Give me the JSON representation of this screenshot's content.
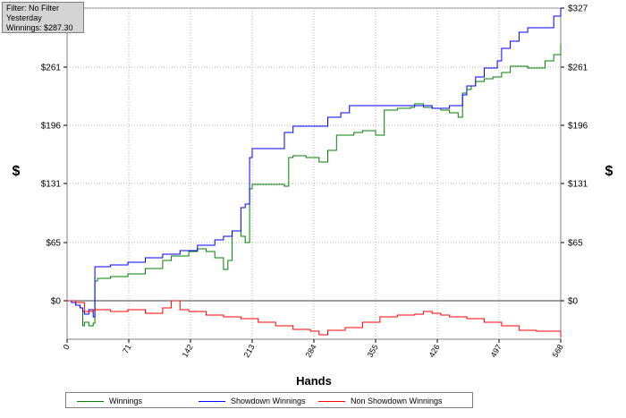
{
  "info": {
    "filter": "Filter: No Filter",
    "period": "Yesterday",
    "winnings": "Winnings: $287.30"
  },
  "chart_data": {
    "type": "line",
    "title": "",
    "xlabel": "Hands",
    "ylabel": "$",
    "xlim": [
      0,
      568
    ],
    "ylim": [
      -43,
      327
    ],
    "x_ticks": [
      0,
      71,
      142,
      213,
      284,
      355,
      426,
      497,
      568
    ],
    "y_ticks": [
      0,
      65,
      131,
      196,
      261,
      327
    ],
    "y_tick_labels": [
      "$0",
      "$65",
      "$131",
      "$196",
      "$261",
      "$327"
    ],
    "grid": true,
    "legend_position": "bottom",
    "colors": {
      "Winnings": "#008000",
      "Showdown Winnings": "#0000ff",
      "Non Showdown Winnings": "#ff0000"
    },
    "series": [
      {
        "name": "Winnings",
        "x": [
          0,
          5,
          10,
          15,
          18,
          20,
          25,
          30,
          32,
          35,
          50,
          70,
          90,
          110,
          120,
          130,
          140,
          150,
          160,
          170,
          180,
          185,
          190,
          200,
          205,
          210,
          213,
          230,
          250,
          255,
          260,
          275,
          290,
          300,
          310,
          320,
          330,
          340,
          355,
          365,
          380,
          395,
          400,
          410,
          420,
          430,
          440,
          450,
          455,
          460,
          465,
          470,
          480,
          490,
          500,
          510,
          520,
          530,
          550,
          560,
          568
        ],
        "y": [
          0,
          -2,
          -5,
          -8,
          -28,
          -24,
          -28,
          -25,
          22,
          25,
          27,
          30,
          36,
          45,
          50,
          50,
          55,
          58,
          55,
          48,
          35,
          45,
          78,
          72,
          65,
          125,
          130,
          130,
          128,
          160,
          162,
          160,
          155,
          168,
          185,
          185,
          188,
          190,
          185,
          213,
          215,
          216,
          220,
          216,
          215,
          213,
          210,
          205,
          232,
          236,
          240,
          245,
          248,
          250,
          255,
          262,
          262,
          260,
          268,
          275,
          287
        ]
      },
      {
        "name": "Showdown Winnings",
        "x": [
          0,
          5,
          10,
          15,
          18,
          20,
          25,
          30,
          32,
          50,
          70,
          90,
          110,
          130,
          150,
          170,
          180,
          190,
          200,
          205,
          210,
          213,
          225,
          240,
          250,
          260,
          280,
          300,
          315,
          325,
          340,
          360,
          380,
          400,
          420,
          440,
          455,
          460,
          470,
          480,
          495,
          500,
          510,
          520,
          530,
          545,
          560,
          568
        ],
        "y": [
          0,
          -2,
          -5,
          -8,
          -12,
          -15,
          -10,
          -18,
          38,
          40,
          43,
          48,
          52,
          56,
          62,
          68,
          72,
          78,
          104,
          108,
          160,
          170,
          170,
          170,
          188,
          195,
          195,
          205,
          210,
          218,
          218,
          218,
          218,
          218,
          215,
          218,
          230,
          240,
          250,
          260,
          268,
          282,
          290,
          300,
          305,
          305,
          318,
          327
        ]
      },
      {
        "name": "Non Showdown Winnings",
        "x": [
          0,
          10,
          20,
          30,
          50,
          70,
          90,
          110,
          120,
          130,
          140,
          160,
          180,
          200,
          220,
          240,
          260,
          280,
          290,
          300,
          320,
          340,
          360,
          380,
          400,
          410,
          420,
          430,
          440,
          460,
          480,
          500,
          520,
          540,
          568
        ],
        "y": [
          0,
          -2,
          -12,
          -10,
          -12,
          -10,
          -14,
          -8,
          0,
          -10,
          -12,
          -16,
          -18,
          -20,
          -24,
          -28,
          -32,
          -34,
          -38,
          -33,
          -30,
          -24,
          -18,
          -16,
          -15,
          -12,
          -14,
          -16,
          -18,
          -20,
          -24,
          -28,
          -33,
          -34,
          -40
        ]
      }
    ]
  }
}
